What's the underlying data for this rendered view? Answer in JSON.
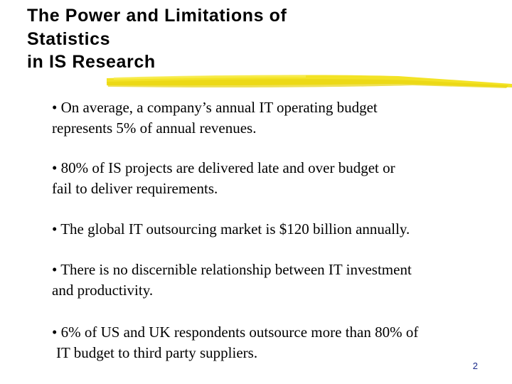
{
  "slide": {
    "title_lines": [
      "The Power and Limitations of",
      "Statistics",
      "in IS Research"
    ],
    "bullets": [
      {
        "lines": [
          "• On average, a company’s annual IT operating budget",
          "represents 5% of annual revenues."
        ]
      },
      {
        "lines": [
          "• 80% of IS projects are delivered late and over budget or",
          "fail to deliver requirements."
        ]
      },
      {
        "lines": [
          "• The global IT outsourcing market is $120 billion annually."
        ]
      },
      {
        "lines": [
          "• There is no discernible relationship between IT investment",
          "and productivity."
        ]
      },
      {
        "lines": [
          "• 6% of US and UK respondents outsource more than 80% of",
          "IT budget to third party suppliers."
        ]
      }
    ],
    "page_number": "2",
    "colors": {
      "underline": "#f2e21a",
      "text": "#000000",
      "page_number": "#1a2a8a"
    }
  }
}
